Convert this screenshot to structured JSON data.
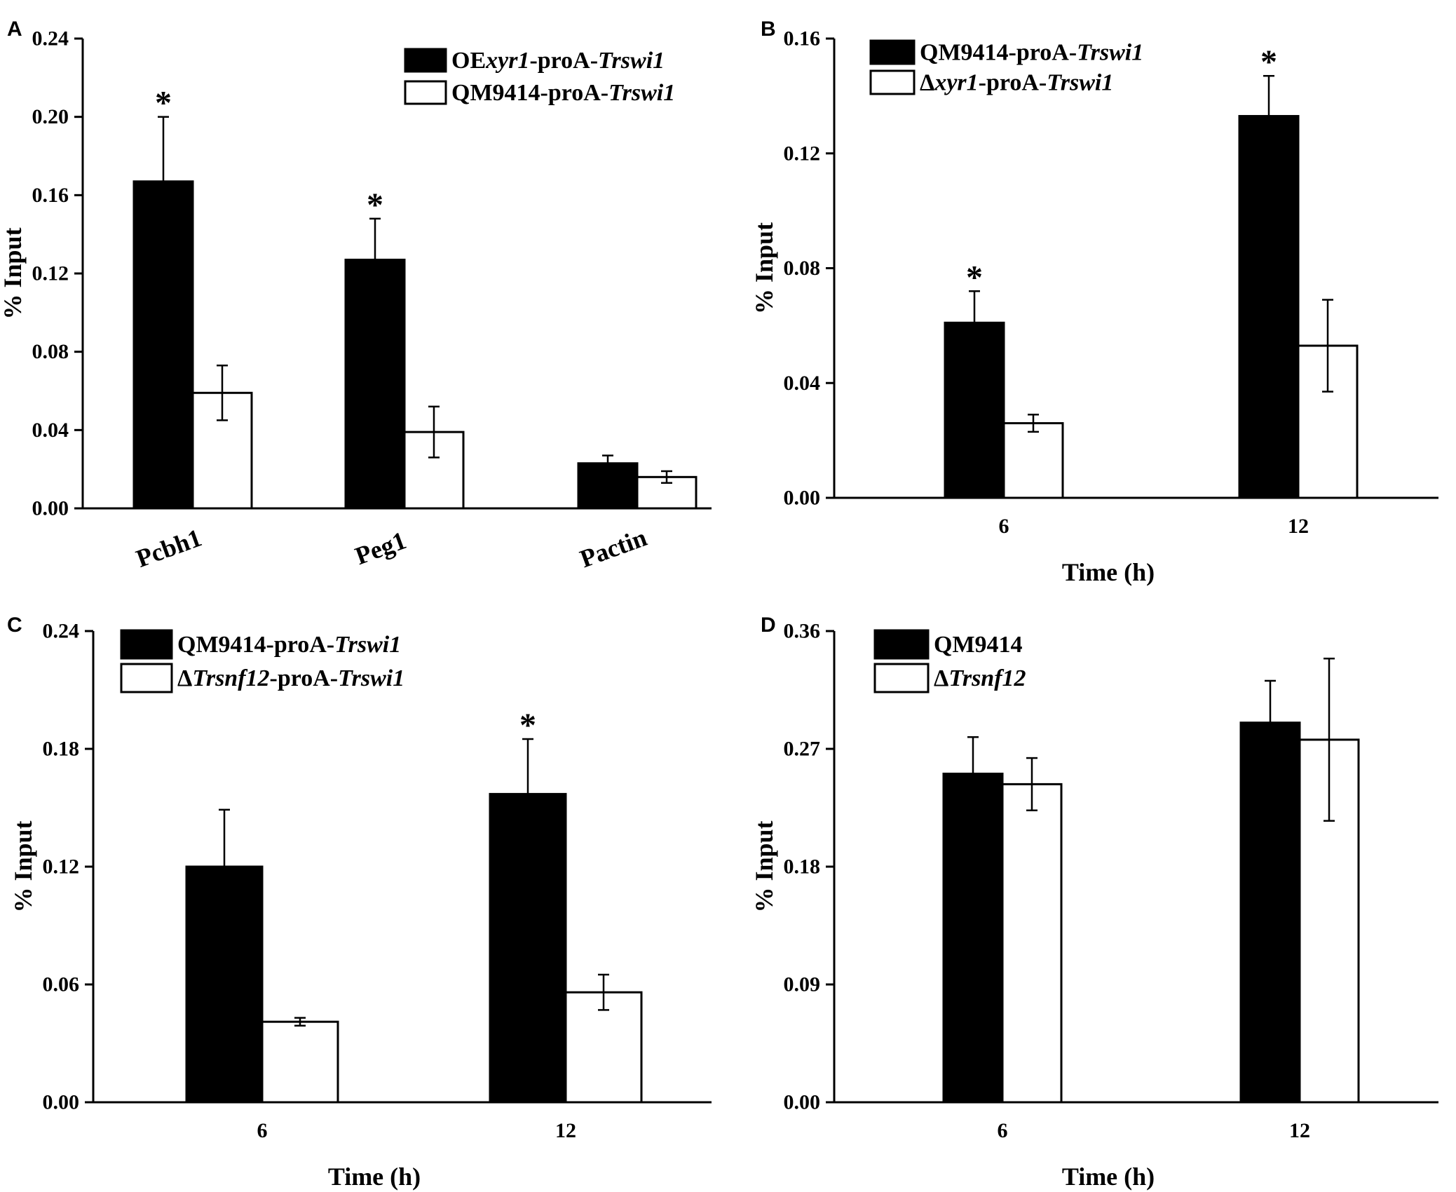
{
  "chart_data": [
    {
      "panel": "A",
      "type": "bar",
      "ylabel": "% Input",
      "xlabel": "",
      "ylim": [
        0,
        0.24
      ],
      "yticks": [
        "0.00",
        "0.04",
        "0.08",
        "0.12",
        "0.16",
        "0.20",
        "0.24"
      ],
      "categories": [
        "Pcbh1",
        "Peg1",
        "Pactin"
      ],
      "legend_placement": "top-right",
      "series": [
        {
          "legend_name": "OE",
          "legend_italic": "xyr1",
          "legend_rest": "-proA-",
          "legend_italic2": "Trswi1",
          "fill": "#000000",
          "values": [
            0.167,
            0.127,
            0.023
          ],
          "errors": [
            0.033,
            0.021,
            0.004
          ],
          "significant": [
            true,
            true,
            false
          ]
        },
        {
          "legend_name": "QM9414-proA-",
          "legend_italic": "Trswi1",
          "legend_rest": "",
          "legend_italic2": "",
          "fill": "#ffffff",
          "values": [
            0.059,
            0.039,
            0.016
          ],
          "errors": [
            0.014,
            0.013,
            0.003
          ],
          "significant": [
            false,
            false,
            false
          ]
        }
      ],
      "annotation": "*"
    },
    {
      "panel": "B",
      "type": "bar",
      "ylabel": "% Input",
      "xlabel": "Time (h)",
      "ylim": [
        0,
        0.16
      ],
      "yticks": [
        "0.00",
        "0.04",
        "0.08",
        "0.12",
        "0.16"
      ],
      "categories": [
        "6",
        "12"
      ],
      "legend_placement": "top-left",
      "series": [
        {
          "legend_name": "QM9414-proA-",
          "legend_italic": "Trswi1",
          "legend_rest": "",
          "legend_italic2": "",
          "fill": "#000000",
          "values": [
            0.061,
            0.133
          ],
          "errors": [
            0.011,
            0.014
          ],
          "significant": [
            true,
            true
          ]
        },
        {
          "legend_name": "Δ",
          "legend_italic": "xyr1",
          "legend_rest": "-proA-",
          "legend_italic2": "Trswi1",
          "fill": "#ffffff",
          "values": [
            0.026,
            0.053
          ],
          "errors": [
            0.003,
            0.016
          ],
          "significant": [
            false,
            false
          ]
        }
      ],
      "annotation": "*"
    },
    {
      "panel": "C",
      "type": "bar",
      "ylabel": "% Input",
      "xlabel": "Time (h)",
      "ylim": [
        0,
        0.24
      ],
      "yticks": [
        "0.00",
        "0.06",
        "0.12",
        "0.18",
        "0.24"
      ],
      "categories": [
        "6",
        "12"
      ],
      "legend_placement": "top-left",
      "series": [
        {
          "legend_name": "QM9414-proA-",
          "legend_italic": "Trswi1",
          "legend_rest": "",
          "legend_italic2": "",
          "fill": "#000000",
          "values": [
            0.12,
            0.157
          ],
          "errors": [
            0.029,
            0.028
          ],
          "significant": [
            false,
            true
          ]
        },
        {
          "legend_name": "Δ",
          "legend_italic": "Trsnf12",
          "legend_rest": "-proA-",
          "legend_italic2": "Trswi1",
          "fill": "#ffffff",
          "values": [
            0.041,
            0.056
          ],
          "errors": [
            0.002,
            0.009
          ],
          "significant": [
            false,
            false
          ]
        }
      ],
      "annotation": "*"
    },
    {
      "panel": "D",
      "type": "bar",
      "ylabel": "% Input",
      "xlabel": "Time (h)",
      "ylim": [
        0,
        0.36
      ],
      "yticks": [
        "0.00",
        "0.09",
        "0.18",
        "0.27",
        "0.36"
      ],
      "categories": [
        "6",
        "12"
      ],
      "legend_placement": "top-left",
      "series": [
        {
          "legend_name": "QM9414",
          "legend_italic": "",
          "legend_rest": "",
          "legend_italic2": "",
          "fill": "#000000",
          "values": [
            0.251,
            0.29
          ],
          "errors": [
            0.028,
            0.032
          ],
          "significant": [
            false,
            false
          ]
        },
        {
          "legend_name": "Δ",
          "legend_italic": "Trsnf12",
          "legend_rest": "",
          "legend_italic2": "",
          "fill": "#ffffff",
          "values": [
            0.243,
            0.277
          ],
          "errors": [
            0.02,
            0.062
          ],
          "significant": [
            false,
            false
          ]
        }
      ],
      "annotation": "*"
    }
  ]
}
